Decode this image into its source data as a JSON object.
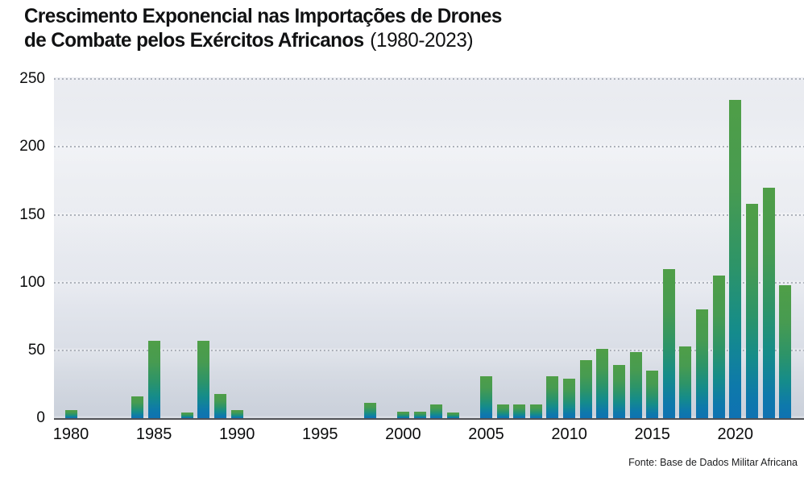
{
  "header": {
    "title_line1": "Crescimento Exponencial nas Importações de Drones",
    "title_line2_bold": "de Combate pelos Exércitos Africanos",
    "title_line2_suffix": "(1980-2023)"
  },
  "source_note": "Fonte: Base de Dados Militar Africana",
  "chart_data": {
    "type": "bar",
    "title": "Crescimento Exponencial nas Importações de Drones de Combate pelos Exércitos Africanos (1980-2023)",
    "xlabel": "",
    "ylabel": "",
    "x": [
      1980,
      1981,
      1982,
      1983,
      1984,
      1985,
      1986,
      1987,
      1988,
      1989,
      1990,
      1991,
      1992,
      1993,
      1994,
      1995,
      1996,
      1997,
      1998,
      1999,
      2000,
      2001,
      2002,
      2003,
      2004,
      2005,
      2006,
      2007,
      2008,
      2009,
      2010,
      2011,
      2012,
      2013,
      2014,
      2015,
      2016,
      2017,
      2018,
      2019,
      2020,
      2021,
      2022,
      2023
    ],
    "values": [
      6,
      0,
      0,
      0,
      16,
      57,
      0,
      4,
      57,
      18,
      6,
      0,
      0,
      0,
      0,
      0,
      0,
      0,
      11,
      0,
      5,
      5,
      10,
      4,
      0,
      31,
      10,
      10,
      10,
      31,
      29,
      43,
      51,
      39,
      49,
      35,
      110,
      53,
      80,
      105,
      235,
      158,
      170,
      98
    ],
    "ylim": [
      0,
      250
    ],
    "yticks": [
      0,
      50,
      100,
      150,
      200,
      250
    ],
    "xticks": [
      1980,
      1985,
      1990,
      1995,
      2000,
      2005,
      2010,
      2015,
      2020
    ],
    "grid": "horizontal-dotted",
    "legend": null,
    "colors": {
      "bar_gradient_top": "#4f9e47",
      "bar_gradient_mid": "#158c8a",
      "bar_gradient_bottom": "#0f72b2",
      "axis_line": "#505256",
      "gridline": "#adb2bb",
      "plot_bg_top": "#e6e8ee",
      "plot_bg_bottom": "#cad0da",
      "text": "#111213"
    },
    "source": "Fonte: Base de Dados Militar Africana"
  }
}
